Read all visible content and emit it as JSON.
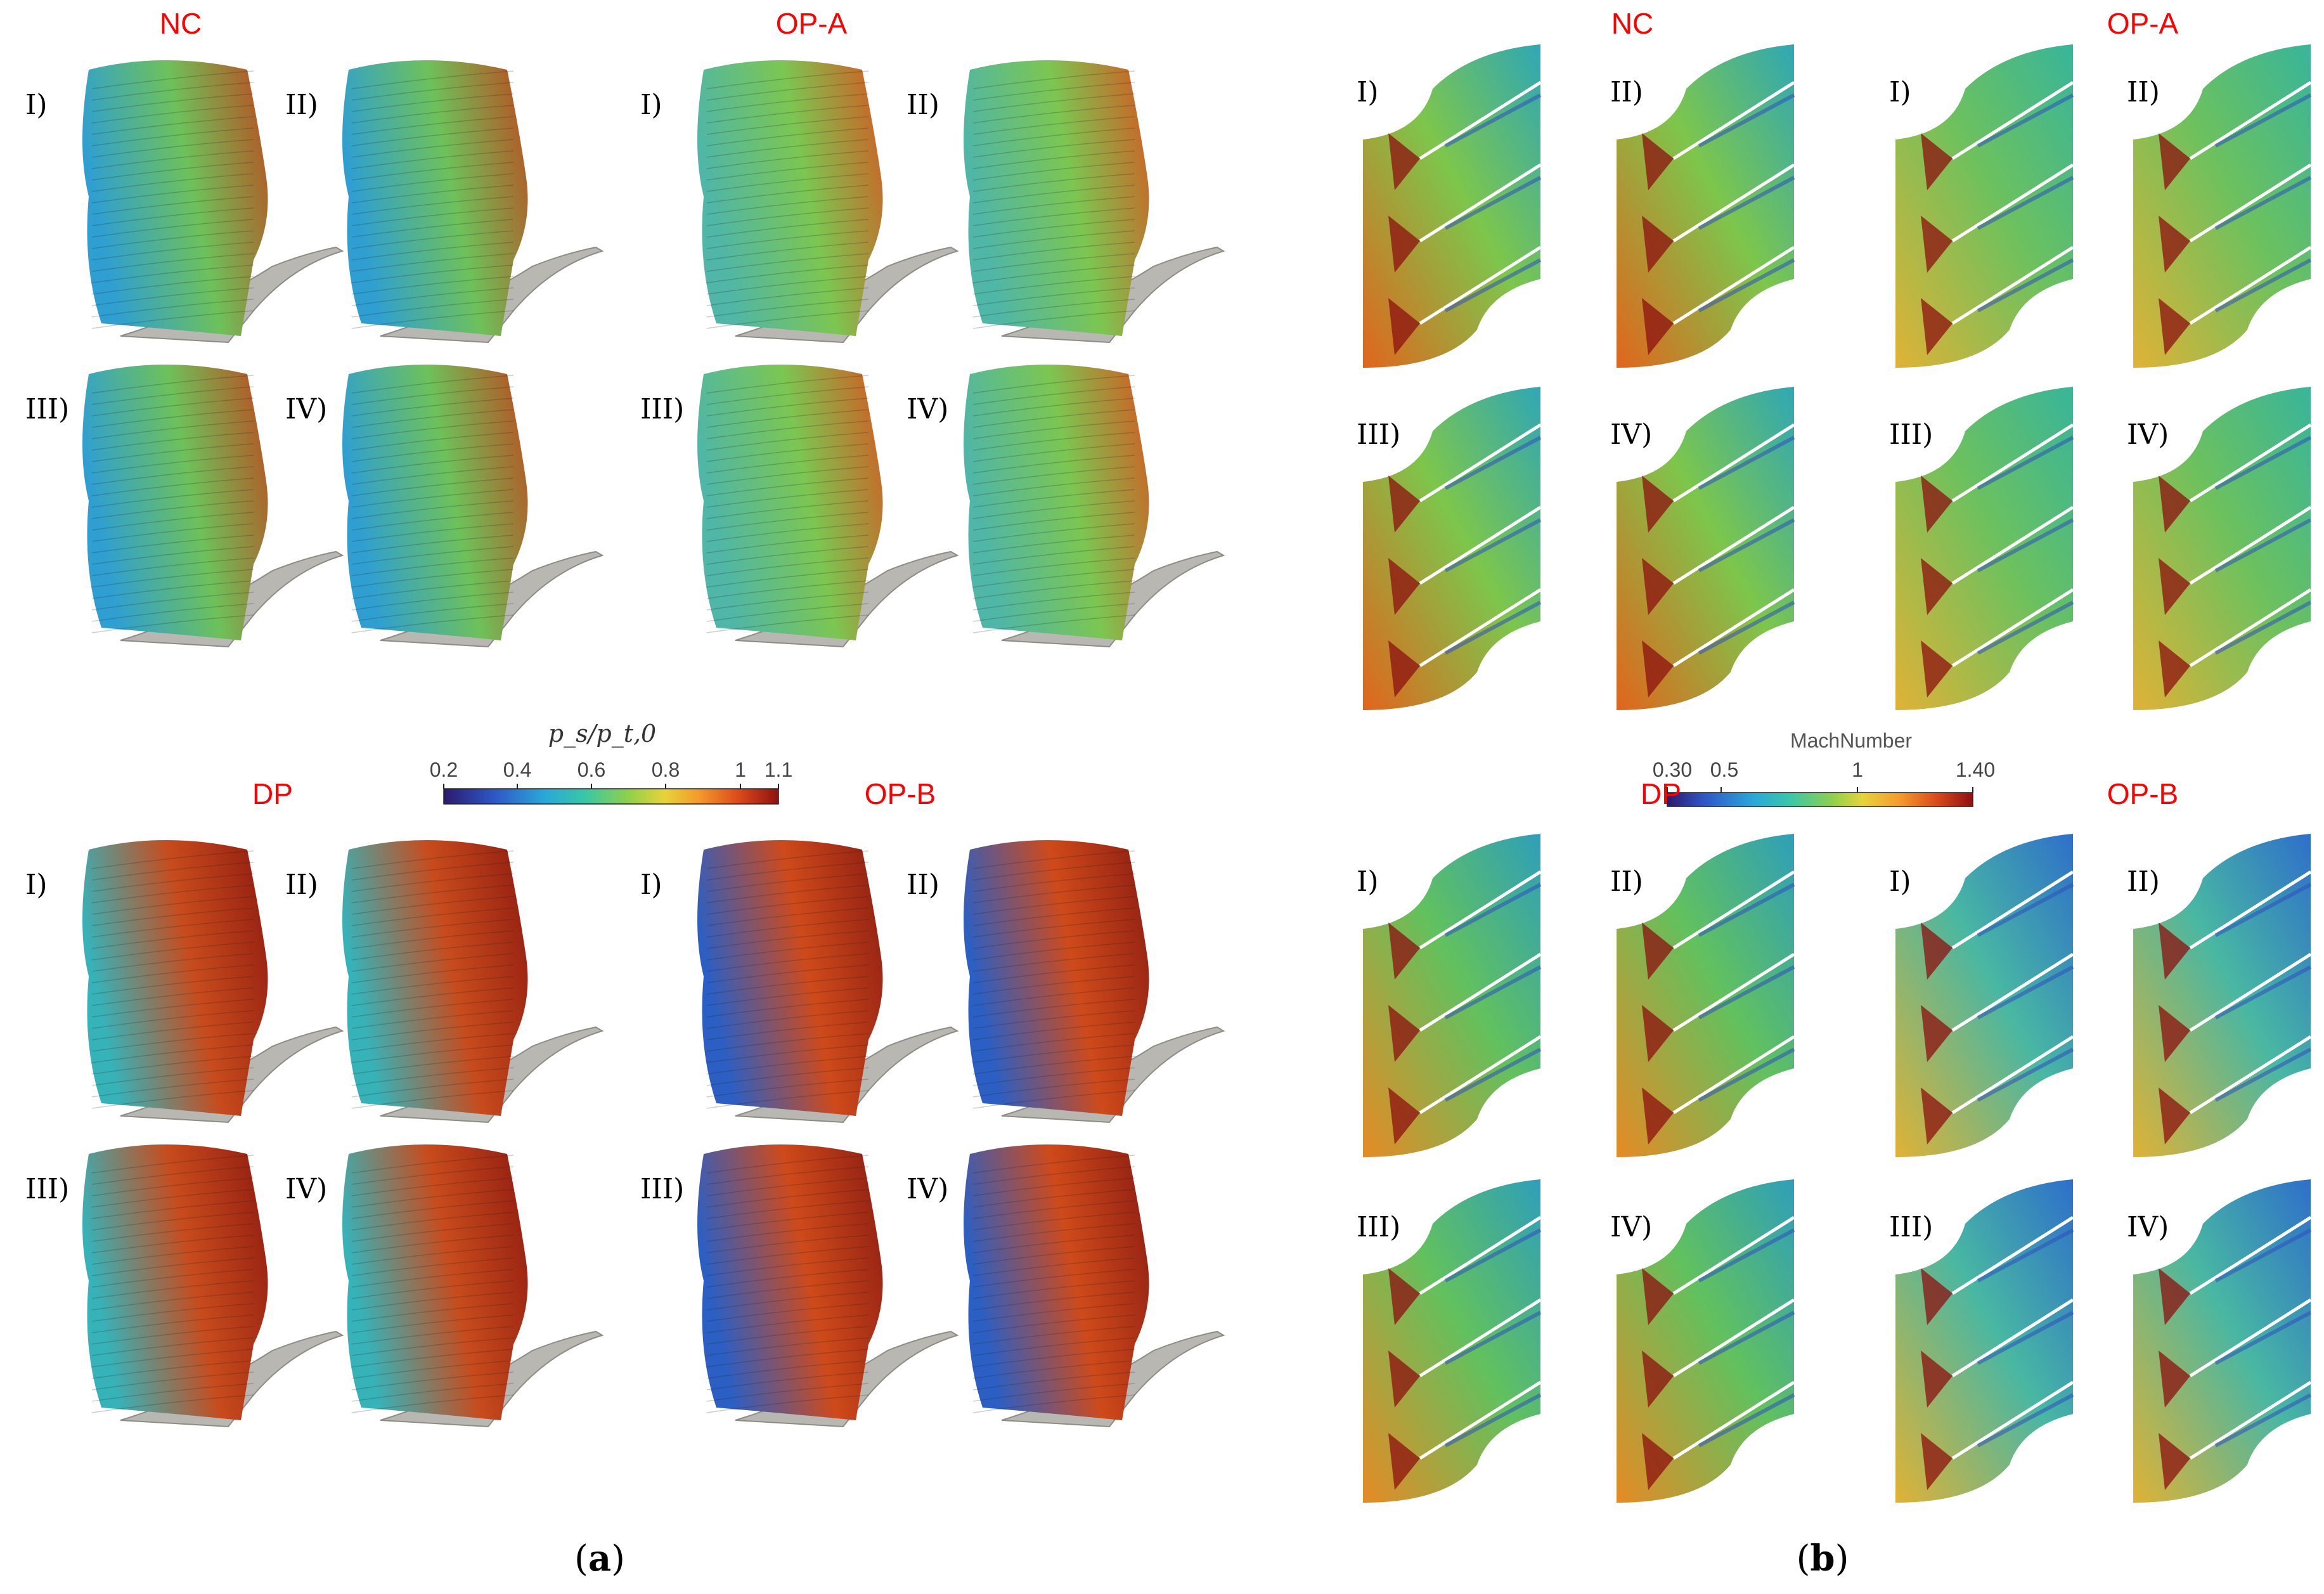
{
  "panel_a": {
    "caption_open": "(",
    "caption_letter": "a",
    "caption_close": ")",
    "groups": [
      {
        "title": "NC",
        "labels": [
          "I)",
          "II)",
          "III)",
          "IV)"
        ]
      },
      {
        "title": "OP-A",
        "labels": [
          "I)",
          "II)",
          "III)",
          "IV)"
        ]
      },
      {
        "title": "DP",
        "labels": [
          "I)",
          "II)",
          "III)",
          "IV)"
        ]
      },
      {
        "title": "OP-B",
        "labels": [
          "I)",
          "II)",
          "III)",
          "IV)"
        ]
      }
    ],
    "colorbar": {
      "title": "p_s/p_t,0",
      "tick_labels": [
        "0.2",
        "0.4",
        "0.6",
        "0.8",
        "1",
        "1.1"
      ]
    }
  },
  "panel_b": {
    "caption_open": "(",
    "caption_letter": "b",
    "caption_close": ")",
    "groups": [
      {
        "title": "NC",
        "labels": [
          "I)",
          "II)",
          "III)",
          "IV)"
        ]
      },
      {
        "title": "OP-A",
        "labels": [
          "I)",
          "II)",
          "III)",
          "IV)"
        ]
      },
      {
        "title": "DP",
        "labels": [
          "I)",
          "II)",
          "III)",
          "IV)"
        ]
      },
      {
        "title": "OP-B",
        "labels": [
          "I)",
          "II)",
          "III)",
          "IV)"
        ]
      }
    ],
    "colorbar": {
      "title": "MachNumber",
      "tick_labels": [
        "0.30",
        "0.5",
        "1",
        "1.40"
      ]
    }
  },
  "colors": {
    "title_red": "#ff0000",
    "colormap": [
      "#2b1a6e",
      "#2f56c6",
      "#2aa7d8",
      "#38c7a8",
      "#8ed04b",
      "#e7d33a",
      "#f49b2c",
      "#dc4a1c",
      "#8e1010"
    ]
  }
}
